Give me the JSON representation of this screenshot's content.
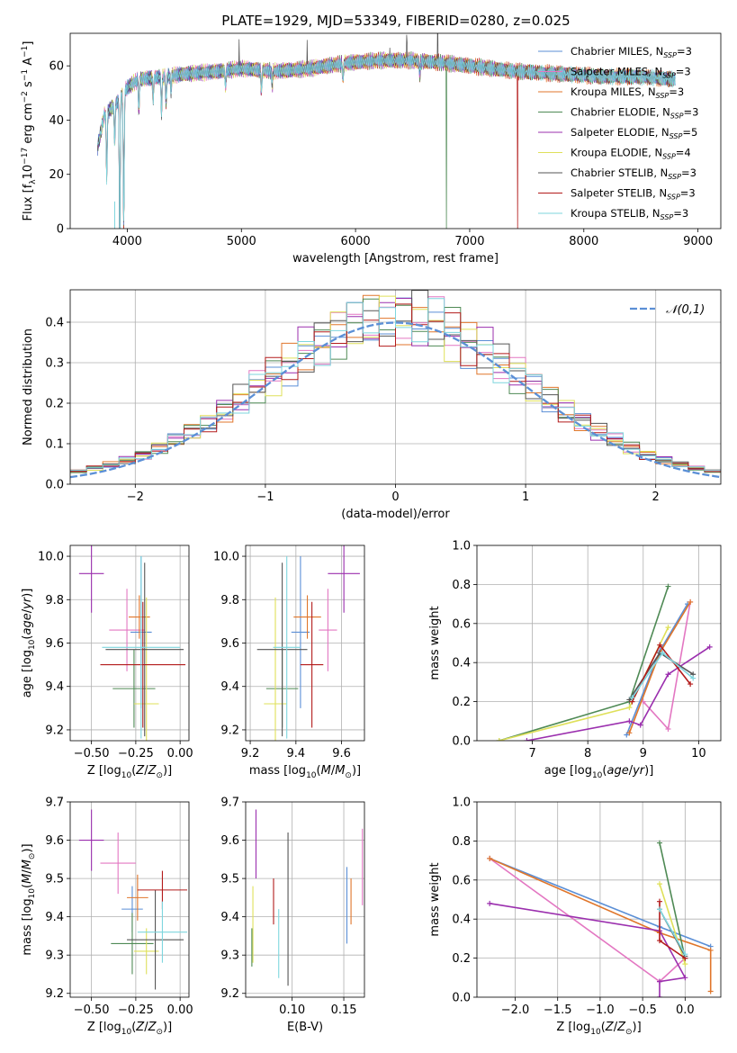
{
  "figure": {
    "title": "PLATE=1929, MJD=53349, FIBERID=0280, z=0.025"
  },
  "colors": {
    "Chabrier MILES": "#5b8fd6",
    "Salpeter MILES": "#e377c2",
    "Kroupa MILES": "#e0762b",
    "Chabrier ELODIE": "#4f8a55",
    "Salpeter ELODIE": "#9b2fae",
    "Kroupa ELODIE": "#dfe05a",
    "Chabrier STELIB": "#555555",
    "Salpeter STELIB": "#b31b1b",
    "Kroupa STELIB": "#7ed6de"
  },
  "chart_data": [
    {
      "id": "spectrum",
      "type": "line",
      "xlabel": "wavelength [Angstrom, rest frame]",
      "ylabel": "Flux [f_λ10^-17 erg cm^-2 s^-1 A^-1]",
      "xlim": [
        3500,
        9200
      ],
      "ylim": [
        0,
        72
      ],
      "xticks": [
        4000,
        5000,
        6000,
        7000,
        8000,
        9000
      ],
      "yticks": [
        0,
        20,
        40,
        60
      ],
      "legend_position": "upper right",
      "legend": [
        {
          "model": "Chabrier MILES",
          "text": "Chabrier MILES, N",
          "sub": "SSP",
          "post": "=3"
        },
        {
          "model": "Salpeter MILES",
          "text": "Salpeter MILES, N",
          "sub": "SSP",
          "post": "=3"
        },
        {
          "model": "Kroupa MILES",
          "text": "Kroupa MILES, N",
          "sub": "SSP",
          "post": "=3"
        },
        {
          "model": "Chabrier ELODIE",
          "text": "Chabrier ELODIE, N",
          "sub": "SSP",
          "post": "=3"
        },
        {
          "model": "Salpeter ELODIE",
          "text": "Salpeter ELODIE, N",
          "sub": "SSP",
          "post": "=5"
        },
        {
          "model": "Kroupa ELODIE",
          "text": "Kroupa ELODIE, N",
          "sub": "SSP",
          "post": "=4"
        },
        {
          "model": "Chabrier STELIB",
          "text": "Chabrier STELIB, N",
          "sub": "SSP",
          "post": "=3"
        },
        {
          "model": "Salpeter STELIB",
          "text": "Salpeter STELIB, N",
          "sub": "SSP",
          "post": "=3"
        },
        {
          "model": "Kroupa STELIB",
          "text": "Kroupa STELIB, N",
          "sub": "SSP",
          "post": "=3"
        }
      ],
      "continuum": [
        [
          3740,
          30
        ],
        [
          3800,
          42
        ],
        [
          3900,
          46
        ],
        [
          4000,
          52
        ],
        [
          4100,
          55
        ],
        [
          4300,
          56
        ],
        [
          4500,
          57
        ],
        [
          4800,
          58
        ],
        [
          5000,
          59
        ],
        [
          5300,
          58
        ],
        [
          5600,
          59
        ],
        [
          5900,
          61
        ],
        [
          6200,
          62
        ],
        [
          6500,
          62
        ],
        [
          6800,
          61
        ],
        [
          7000,
          60
        ],
        [
          7400,
          58
        ],
        [
          7800,
          57
        ],
        [
          8200,
          56
        ],
        [
          8500,
          56
        ],
        [
          8800,
          55
        ]
      ],
      "absorption_lines": [
        [
          3820,
          25
        ],
        [
          3890,
          14
        ],
        [
          3934,
          58
        ],
        [
          3969,
          50
        ],
        [
          4102,
          12
        ],
        [
          4227,
          8
        ],
        [
          4300,
          14
        ],
        [
          4340,
          10
        ],
        [
          4383,
          6
        ],
        [
          4861,
          6
        ],
        [
          5175,
          8
        ],
        [
          5270,
          5
        ],
        [
          5890,
          6
        ],
        [
          6563,
          5
        ]
      ],
      "spikes": [
        [
          4980,
          12
        ],
        [
          5577,
          10
        ],
        [
          6300,
          6
        ],
        [
          6450,
          8
        ],
        [
          6720,
          20
        ]
      ],
      "mask_drops": [
        {
          "model": "Chabrier ELODIE",
          "x": 6795
        },
        {
          "model": "Salpeter STELIB",
          "x": 7420
        }
      ]
    },
    {
      "id": "residuals",
      "type": "histogram",
      "xlabel": "(data-model)/error",
      "ylabel": "Normed distribution",
      "xlim": [
        -2.5,
        2.5
      ],
      "ylim": [
        0,
        0.48
      ],
      "xticks": [
        -2,
        -1,
        0,
        1,
        2
      ],
      "yticks": [
        0.0,
        0.1,
        0.2,
        0.3,
        0.4
      ],
      "bins": 40,
      "reference": {
        "label": "𝒩(0,1)",
        "color": "#5b8fd6",
        "mean": 0,
        "sigma": 1,
        "legend_position": "upper right"
      }
    },
    {
      "id": "age_vs_Z",
      "type": "scatter",
      "xlabel": "Z [log10(Z/Z_sun)]",
      "ylabel": "age [log10(age/yr)]",
      "xlim": [
        -0.62,
        0.05
      ],
      "ylim": [
        9.15,
        10.05
      ],
      "xticks": [
        -0.5,
        -0.25,
        0.0
      ],
      "xticklabels": [
        "−0.50",
        "−0.25",
        "0.00"
      ],
      "yticks": [
        9.2,
        9.4,
        9.6,
        9.8,
        10.0
      ],
      "points": [
        {
          "model": "Chabrier MILES",
          "x": -0.22,
          "y": 9.65,
          "xerr": 0.06,
          "yerr": 0.35
        },
        {
          "model": "Salpeter MILES",
          "x": -0.3,
          "y": 9.66,
          "xerr": 0.1,
          "yerr": 0.19
        },
        {
          "model": "Kroupa MILES",
          "x": -0.23,
          "y": 9.72,
          "xerr": 0.06,
          "yerr": 0.1
        },
        {
          "model": "Chabrier ELODIE",
          "x": -0.26,
          "y": 9.39,
          "xerr": 0.12,
          "yerr": 0.18
        },
        {
          "model": "Salpeter ELODIE",
          "x": -0.5,
          "y": 9.92,
          "xerr": 0.07,
          "yerr": 0.18
        },
        {
          "model": "Kroupa ELODIE",
          "x": -0.19,
          "y": 9.32,
          "xerr": 0.07,
          "yerr": 0.49
        },
        {
          "model": "Chabrier STELIB",
          "x": -0.2,
          "y": 9.57,
          "xerr": 0.22,
          "yerr": 0.4
        },
        {
          "model": "Salpeter STELIB",
          "x": -0.21,
          "y": 9.5,
          "xerr": 0.24,
          "yerr": 0.29
        },
        {
          "model": "Kroupa STELIB",
          "x": -0.22,
          "y": 9.58,
          "xerr": 0.22,
          "yerr": 0.42
        }
      ]
    },
    {
      "id": "age_vs_mass",
      "type": "scatter",
      "xlabel": "mass [log10(M/M_sun)]",
      "xlim": [
        9.18,
        9.7
      ],
      "ylim": [
        9.15,
        10.05
      ],
      "xticks": [
        9.2,
        9.4,
        9.6
      ],
      "yticks": [
        9.2,
        9.4,
        9.6,
        9.8,
        10.0
      ],
      "points": [
        {
          "model": "Chabrier MILES",
          "x": 9.42,
          "y": 9.65,
          "xerr": 0.04,
          "yerr": 0.35
        },
        {
          "model": "Salpeter MILES",
          "x": 9.54,
          "y": 9.66,
          "xerr": 0.04,
          "yerr": 0.19
        },
        {
          "model": "Kroupa MILES",
          "x": 9.45,
          "y": 9.72,
          "xerr": 0.06,
          "yerr": 0.1
        },
        {
          "model": "Chabrier ELODIE",
          "x": 9.34,
          "y": 9.39,
          "xerr": 0.07,
          "yerr": 0.18
        },
        {
          "model": "Salpeter ELODIE",
          "x": 9.61,
          "y": 9.92,
          "xerr": 0.07,
          "yerr": 0.18
        },
        {
          "model": "Kroupa ELODIE",
          "x": 9.31,
          "y": 9.32,
          "xerr": 0.05,
          "yerr": 0.49
        },
        {
          "model": "Chabrier STELIB",
          "x": 9.34,
          "y": 9.57,
          "xerr": 0.11,
          "yerr": 0.4
        },
        {
          "model": "Salpeter STELIB",
          "x": 9.47,
          "y": 9.5,
          "xerr": 0.05,
          "yerr": 0.29
        },
        {
          "model": "Kroupa STELIB",
          "x": 9.36,
          "y": 9.58,
          "xerr": 0.06,
          "yerr": 0.42
        }
      ]
    },
    {
      "id": "weight_vs_age",
      "type": "line",
      "xlabel": "age [log10(age/yr)]",
      "ylabel": "mass weight",
      "xlim": [
        6.0,
        10.4
      ],
      "ylim": [
        0,
        1
      ],
      "xticks": [
        7,
        8,
        9,
        10
      ],
      "yticks": [
        0.0,
        0.2,
        0.4,
        0.6,
        0.8,
        1.0
      ],
      "series": [
        {
          "model": "Chabrier MILES",
          "points": [
            [
              8.7,
              0.03
            ],
            [
              9.3,
              0.46
            ],
            [
              9.8,
              0.7
            ]
          ]
        },
        {
          "model": "Salpeter MILES",
          "points": [
            [
              9.0,
              0.2
            ],
            [
              9.45,
              0.06
            ],
            [
              9.85,
              0.71
            ]
          ]
        },
        {
          "model": "Kroupa MILES",
          "points": [
            [
              8.75,
              0.04
            ],
            [
              9.3,
              0.45
            ],
            [
              9.85,
              0.71
            ]
          ]
        },
        {
          "model": "Chabrier ELODIE",
          "points": [
            [
              6.4,
              0.0
            ],
            [
              8.75,
              0.2
            ],
            [
              9.45,
              0.79
            ]
          ]
        },
        {
          "model": "Salpeter ELODIE",
          "points": [
            [
              6.9,
              0.0
            ],
            [
              8.75,
              0.1
            ],
            [
              8.95,
              0.08
            ],
            [
              9.45,
              0.34
            ],
            [
              10.2,
              0.48
            ]
          ]
        },
        {
          "model": "Kroupa ELODIE",
          "points": [
            [
              6.4,
              0.0
            ],
            [
              8.75,
              0.17
            ],
            [
              9.45,
              0.58
            ]
          ]
        },
        {
          "model": "Chabrier STELIB",
          "points": [
            [
              8.75,
              0.21
            ],
            [
              9.3,
              0.45
            ],
            [
              9.9,
              0.34
            ]
          ]
        },
        {
          "model": "Salpeter STELIB",
          "points": [
            [
              8.8,
              0.2
            ],
            [
              9.3,
              0.49
            ],
            [
              9.85,
              0.29
            ]
          ]
        },
        {
          "model": "Kroupa STELIB",
          "points": [
            [
              8.8,
              0.22
            ],
            [
              9.35,
              0.45
            ],
            [
              9.9,
              0.32
            ]
          ]
        }
      ]
    },
    {
      "id": "mass_vs_Z",
      "type": "scatter",
      "xlabel": "Z [log10(Z/Z_sun)]",
      "ylabel": "mass [log10(M/M_sun)]",
      "xlim": [
        -0.62,
        0.05
      ],
      "ylim": [
        9.19,
        9.7
      ],
      "xticks": [
        -0.5,
        -0.25,
        0.0
      ],
      "xticklabels": [
        "−0.50",
        "−0.25",
        "0.00"
      ],
      "yticks": [
        9.2,
        9.3,
        9.4,
        9.5,
        9.6,
        9.7
      ],
      "points": [
        {
          "model": "Chabrier MILES",
          "x": -0.27,
          "y": 9.42,
          "xerr": 0.06,
          "yerr": 0.06
        },
        {
          "model": "Salpeter MILES",
          "x": -0.35,
          "y": 9.54,
          "xerr": 0.1,
          "yerr": 0.08
        },
        {
          "model": "Kroupa MILES",
          "x": -0.24,
          "y": 9.45,
          "xerr": 0.06,
          "yerr": 0.06
        },
        {
          "model": "Chabrier ELODIE",
          "x": -0.27,
          "y": 9.33,
          "xerr": 0.12,
          "yerr": 0.08
        },
        {
          "model": "Salpeter ELODIE",
          "x": -0.5,
          "y": 9.6,
          "xerr": 0.07,
          "yerr": 0.08
        },
        {
          "model": "Kroupa ELODIE",
          "x": -0.19,
          "y": 9.31,
          "xerr": 0.07,
          "yerr": 0.06
        },
        {
          "model": "Chabrier STELIB",
          "x": -0.14,
          "y": 9.34,
          "xerr": 0.16,
          "yerr": 0.13
        },
        {
          "model": "Salpeter STELIB",
          "x": -0.1,
          "y": 9.47,
          "xerr": 0.14,
          "yerr": 0.05
        },
        {
          "model": "Kroupa STELIB",
          "x": -0.1,
          "y": 9.36,
          "xerr": 0.14,
          "yerr": 0.08
        }
      ]
    },
    {
      "id": "mass_vs_EBV",
      "type": "scatter",
      "xlabel": "E(B-V)",
      "xlim": [
        0.055,
        0.17
      ],
      "ylim": [
        9.19,
        9.7
      ],
      "xticks": [
        0.1,
        0.15
      ],
      "xticklabels": [
        "0.10",
        "0.15"
      ],
      "yticks": [
        9.2,
        9.3,
        9.4,
        9.5,
        9.6,
        9.7
      ],
      "points": [
        {
          "model": "Chabrier MILES",
          "x": 0.153,
          "y": 9.43,
          "xerr": 0,
          "yerr": 0.1
        },
        {
          "model": "Salpeter MILES",
          "x": 0.168,
          "y": 9.53,
          "xerr": 0,
          "yerr": 0.1
        },
        {
          "model": "Kroupa MILES",
          "x": 0.157,
          "y": 9.44,
          "xerr": 0,
          "yerr": 0.06
        },
        {
          "model": "Chabrier ELODIE",
          "x": 0.061,
          "y": 9.32,
          "xerr": 0,
          "yerr": 0.05
        },
        {
          "model": "Salpeter ELODIE",
          "x": 0.065,
          "y": 9.59,
          "xerr": 0,
          "yerr": 0.09
        },
        {
          "model": "Kroupa ELODIE",
          "x": 0.062,
          "y": 9.38,
          "xerr": 0,
          "yerr": 0.1
        },
        {
          "model": "Chabrier STELIB",
          "x": 0.096,
          "y": 9.42,
          "xerr": 0,
          "yerr": 0.2
        },
        {
          "model": "Salpeter STELIB",
          "x": 0.082,
          "y": 9.44,
          "xerr": 0,
          "yerr": 0.06
        },
        {
          "model": "Kroupa STELIB",
          "x": 0.087,
          "y": 9.33,
          "xerr": 0,
          "yerr": 0.09
        }
      ]
    },
    {
      "id": "weight_vs_Z",
      "type": "line",
      "xlabel": "Z [log10(Z/Z_sun)]",
      "ylabel": "mass weight",
      "xlim": [
        -2.45,
        0.42
      ],
      "ylim": [
        0,
        1
      ],
      "xticks": [
        -2.0,
        -1.5,
        -1.0,
        -0.5,
        0.0
      ],
      "xticklabels": [
        "−2.0",
        "−1.5",
        "−1.0",
        "−0.5",
        "0.0"
      ],
      "yticks": [
        0.0,
        0.2,
        0.4,
        0.6,
        0.8,
        1.0
      ],
      "series": [
        {
          "model": "Chabrier MILES",
          "points": [
            [
              -2.3,
              0.71
            ],
            [
              -0.3,
              0.36
            ],
            [
              0.3,
              0.26
            ]
          ]
        },
        {
          "model": "Salpeter MILES",
          "points": [
            [
              -2.3,
              0.71
            ],
            [
              -0.3,
              0.08
            ],
            [
              0.0,
              0.2
            ]
          ]
        },
        {
          "model": "Kroupa MILES",
          "points": [
            [
              -2.3,
              0.71
            ],
            [
              -0.3,
              0.33
            ],
            [
              0.3,
              0.24
            ],
            [
              0.3,
              0.03
            ]
          ]
        },
        {
          "model": "Chabrier ELODIE",
          "points": [
            [
              -0.3,
              0.79
            ],
            [
              0.0,
              0.2
            ]
          ]
        },
        {
          "model": "Salpeter ELODIE",
          "points": [
            [
              -2.3,
              0.48
            ],
            [
              -0.3,
              0.34
            ],
            [
              0.0,
              0.1
            ],
            [
              -0.3,
              0.08
            ],
            [
              -0.3,
              0.0
            ]
          ]
        },
        {
          "model": "Kroupa ELODIE",
          "points": [
            [
              -0.3,
              0.58
            ],
            [
              0.0,
              0.17
            ]
          ]
        },
        {
          "model": "Chabrier STELIB",
          "points": [
            [
              -0.3,
              0.45
            ],
            [
              0.0,
              0.21
            ]
          ]
        },
        {
          "model": "Salpeter STELIB",
          "points": [
            [
              -0.3,
              0.49
            ],
            [
              -0.3,
              0.29
            ],
            [
              0.0,
              0.2
            ]
          ]
        },
        {
          "model": "Kroupa STELIB",
          "points": [
            [
              -0.3,
              0.45
            ],
            [
              0.0,
              0.22
            ]
          ]
        }
      ]
    }
  ]
}
